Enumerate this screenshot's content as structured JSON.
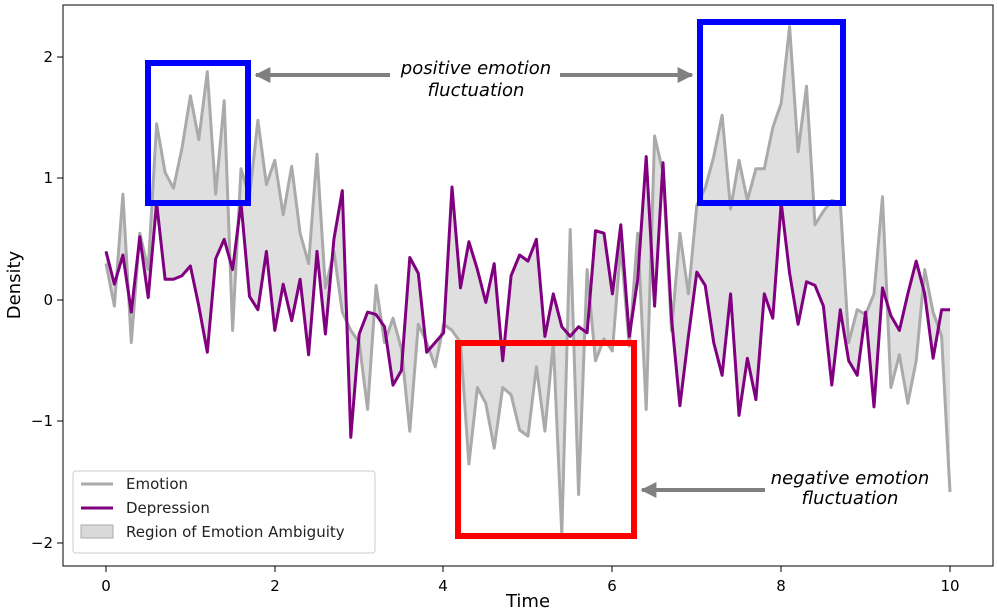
{
  "chart_data": {
    "type": "line",
    "title": "",
    "xlabel": "Time",
    "ylabel": "Density",
    "xlim": [
      -0.5,
      10.5
    ],
    "ylim": [
      -2.1,
      2.3
    ],
    "xticks": [
      0,
      2,
      4,
      6,
      8,
      10
    ],
    "xtick_labels": [
      "0",
      "2",
      "4",
      "6",
      "8",
      "10"
    ],
    "yticks": [
      -2,
      -1,
      0,
      1,
      2
    ],
    "ytick_labels": [
      "−2",
      "−1",
      "0",
      "1",
      "2"
    ],
    "grid": false,
    "legend_position": "lower-left",
    "colors": {
      "emotion": "#aaaaaa",
      "depression": "#800080",
      "region_fill": "#d9d9d9",
      "region_edge": "#aaaaaa",
      "positive_box": "#0000ff",
      "negative_box": "#ff0000",
      "arrow": "#808080"
    },
    "legend": [
      {
        "label": "Emotion",
        "kind": "line",
        "color": "#aaaaaa"
      },
      {
        "label": "Depression",
        "kind": "line",
        "color": "#800080"
      },
      {
        "label": "Region of Emotion Ambiguity",
        "kind": "patch",
        "color": "#d9d9d9"
      }
    ],
    "series": [
      {
        "name": "Emotion",
        "x": [
          0,
          0.1,
          0.2,
          0.3,
          0.4,
          0.5,
          0.6,
          0.7,
          0.8,
          0.9,
          1.0,
          1.1,
          1.2,
          1.3,
          1.4,
          1.5,
          1.6,
          1.7,
          1.8,
          1.9,
          2.0,
          2.1,
          2.2,
          2.3,
          2.4,
          2.5,
          2.6,
          2.7,
          2.8,
          2.9,
          3.0,
          3.1,
          3.2,
          3.3,
          3.4,
          3.5,
          3.6,
          3.7,
          3.8,
          3.9,
          4.0,
          4.1,
          4.2,
          4.3,
          4.4,
          4.5,
          4.6,
          4.7,
          4.8,
          4.9,
          5.0,
          5.1,
          5.2,
          5.3,
          5.4,
          5.5,
          5.6,
          5.7,
          5.8,
          5.9,
          6.0,
          6.1,
          6.2,
          6.3,
          6.4,
          6.5,
          6.6,
          6.7,
          6.8,
          6.9,
          7.0,
          7.1,
          7.2,
          7.3,
          7.4,
          7.5,
          7.6,
          7.7,
          7.8,
          7.9,
          8.0,
          8.1,
          8.2,
          8.3,
          8.4,
          8.5,
          8.6,
          8.7,
          8.8,
          8.9,
          9.0,
          9.1,
          9.2,
          9.3,
          9.4,
          9.5,
          9.6,
          9.7,
          9.8,
          9.9,
          10.0
        ],
        "values": [
          0.3,
          -0.05,
          0.87,
          -0.35,
          0.55,
          0.25,
          1.45,
          1.05,
          0.92,
          1.25,
          1.68,
          1.32,
          1.88,
          0.87,
          1.64,
          -0.25,
          1.08,
          0.85,
          1.48,
          0.95,
          1.15,
          0.7,
          1.1,
          0.55,
          0.3,
          1.2,
          0.1,
          0.4,
          -0.1,
          -0.25,
          -0.35,
          -0.9,
          0.12,
          -0.35,
          -0.15,
          -0.4,
          -1.08,
          -0.2,
          -0.35,
          -0.55,
          -0.2,
          -0.25,
          -0.35,
          -1.35,
          -0.72,
          -0.85,
          -1.22,
          -0.72,
          -0.78,
          -1.07,
          -1.12,
          -0.55,
          -1.08,
          -0.35,
          -1.93,
          0.58,
          -1.6,
          0.25,
          -0.5,
          -0.32,
          -0.42,
          0.45,
          -0.38,
          0.55,
          -0.9,
          1.35,
          1.05,
          -0.25,
          0.55,
          0.05,
          0.78,
          0.92,
          1.18,
          1.52,
          0.75,
          1.15,
          0.82,
          1.08,
          1.08,
          1.42,
          1.62,
          2.25,
          1.22,
          1.76,
          0.62,
          0.73,
          0.82,
          0.8,
          -0.35,
          -0.08,
          -0.12,
          0.05,
          0.85,
          -0.72,
          -0.45,
          -0.85,
          -0.5,
          0.25,
          -0.1,
          -0.3,
          -1.58
        ]
      },
      {
        "name": "Depression",
        "x": [
          0,
          0.1,
          0.2,
          0.3,
          0.4,
          0.5,
          0.6,
          0.7,
          0.8,
          0.9,
          1.0,
          1.1,
          1.2,
          1.3,
          1.4,
          1.5,
          1.6,
          1.7,
          1.8,
          1.9,
          2.0,
          2.1,
          2.2,
          2.3,
          2.4,
          2.5,
          2.6,
          2.7,
          2.8,
          2.9,
          3.0,
          3.1,
          3.2,
          3.3,
          3.4,
          3.5,
          3.6,
          3.7,
          3.8,
          3.9,
          4.0,
          4.1,
          4.2,
          4.3,
          4.4,
          4.5,
          4.6,
          4.7,
          4.8,
          4.9,
          5.0,
          5.1,
          5.2,
          5.3,
          5.4,
          5.5,
          5.6,
          5.7,
          5.8,
          5.9,
          6.0,
          6.1,
          6.2,
          6.3,
          6.4,
          6.5,
          6.6,
          6.7,
          6.8,
          6.9,
          7.0,
          7.1,
          7.2,
          7.3,
          7.4,
          7.5,
          7.6,
          7.7,
          7.8,
          7.9,
          8.0,
          8.1,
          8.2,
          8.3,
          8.4,
          8.5,
          8.6,
          8.7,
          8.8,
          8.9,
          9.0,
          9.1,
          9.2,
          9.3,
          9.4,
          9.5,
          9.6,
          9.7,
          9.8,
          9.9,
          10.0
        ],
        "values": [
          0.4,
          0.13,
          0.37,
          -0.1,
          0.52,
          0.02,
          0.8,
          0.17,
          0.17,
          0.2,
          0.28,
          -0.05,
          -0.43,
          0.34,
          0.5,
          0.25,
          0.8,
          0.03,
          -0.08,
          0.4,
          -0.25,
          0.13,
          -0.17,
          0.17,
          -0.45,
          0.4,
          -0.28,
          0.5,
          0.9,
          -1.13,
          -0.28,
          -0.1,
          -0.12,
          -0.22,
          -0.7,
          -0.58,
          0.35,
          0.22,
          -0.43,
          -0.35,
          -0.27,
          0.93,
          0.1,
          0.48,
          0.25,
          -0.02,
          0.3,
          -0.5,
          0.2,
          0.37,
          0.32,
          0.5,
          -0.3,
          0.05,
          -0.22,
          -0.3,
          -0.22,
          -0.27,
          0.57,
          0.55,
          0.05,
          0.62,
          -0.3,
          0.17,
          1.18,
          -0.05,
          1.13,
          -0.15,
          -0.87,
          -0.3,
          0.23,
          0.12,
          -0.35,
          -0.62,
          0.05,
          -0.95,
          -0.48,
          -0.82,
          0.05,
          -0.15,
          0.8,
          0.22,
          -0.2,
          0.15,
          0.12,
          -0.05,
          -0.7,
          -0.08,
          -0.5,
          -0.62,
          -0.1,
          -0.88,
          0.1,
          -0.13,
          -0.25,
          0.05,
          0.32,
          0.05,
          -0.48,
          -0.08,
          -0.08
        ]
      }
    ],
    "annotations": [
      {
        "text_lines": [
          "positive emotion",
          "fluctuation"
        ],
        "box_color": "#0000ff",
        "box_x_range": [
          0.5,
          1.7
        ],
        "box_y_range": [
          0.78,
          1.95
        ],
        "target": "left-box"
      },
      {
        "text_lines": [
          "negative emotion",
          "fluctuation"
        ],
        "box_color": "#ff0000",
        "box_x_range": [
          4.15,
          6.25
        ],
        "box_y_range": [
          -1.95,
          -0.35
        ]
      }
    ]
  }
}
